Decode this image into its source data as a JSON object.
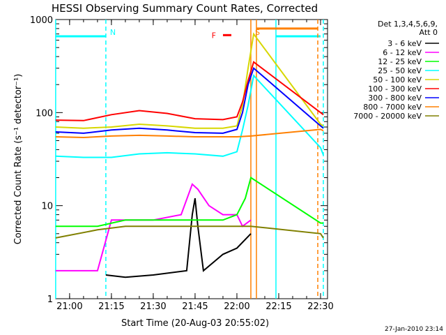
{
  "chart_data": {
    "type": "line",
    "title": "HESSI Observing Summary Count Rates, Corrected",
    "xlabel": "Start Time (20-Aug-03 20:55:02)",
    "ylabel": "Corrected Count Rate (s⁻¹ detector⁻¹)",
    "ylog": true,
    "xlim": [
      "20:55:02",
      "22:32:30"
    ],
    "ylim": [
      1,
      1000
    ],
    "x_ticks": [
      "21:00",
      "21:15",
      "21:30",
      "21:45",
      "22:00",
      "22:15",
      "22:30"
    ],
    "y_ticks": [
      "1",
      "10",
      "100",
      "1000"
    ],
    "legend": {
      "position": "right",
      "header": [
        "Det 1,3,4,5,6,9,",
        "Att 0"
      ]
    },
    "footer_text": "27-Jan-2010 23:14",
    "series": [
      {
        "name": "3 - 6 keV",
        "color": "#000000",
        "x": [
          "21:13",
          "21:20",
          "21:30",
          "21:42",
          "21:44",
          "21:45",
          "21:46",
          "21:48",
          "21:55",
          "22:00",
          "22:05"
        ],
        "y": [
          1.8,
          1.7,
          1.8,
          2.0,
          8.0,
          12.0,
          6.0,
          2.0,
          3.0,
          3.5,
          5.0
        ]
      },
      {
        "name": "6 - 12 keV",
        "color": "#ff00ff",
        "x": [
          "20:55",
          "21:10",
          "21:15",
          "21:30",
          "21:40",
          "21:44",
          "21:46",
          "21:50",
          "21:55",
          "22:00",
          "22:02",
          "22:05"
        ],
        "y": [
          2.0,
          2.0,
          7.0,
          7.0,
          8.0,
          17.0,
          15.0,
          10.0,
          8.0,
          8.0,
          6.0,
          7.0
        ]
      },
      {
        "name": "12 - 25 keV",
        "color": "#00ff00",
        "x": [
          "20:55",
          "21:10",
          "21:20",
          "21:30",
          "21:45",
          "21:55",
          "22:00",
          "22:03",
          "22:05",
          "22:30",
          "22:31"
        ],
        "y": [
          6.0,
          6.0,
          7.0,
          7.0,
          7.0,
          7.0,
          8.0,
          12.0,
          20.0,
          6.5,
          6.5
        ]
      },
      {
        "name": "25 - 50 keV",
        "color": "#00ffff",
        "x": [
          "20:55",
          "21:05",
          "21:15",
          "21:25",
          "21:35",
          "21:45",
          "21:55",
          "22:00",
          "22:02",
          "22:04",
          "22:06",
          "22:30",
          "22:31"
        ],
        "y": [
          34,
          33,
          33,
          36,
          37,
          36,
          34,
          38,
          65,
          120,
          250,
          42,
          35
        ]
      },
      {
        "name": "50 - 100 keV",
        "color": "#d7d700",
        "x": [
          "20:55",
          "21:05",
          "21:15",
          "21:25",
          "21:35",
          "21:45",
          "21:55",
          "22:00",
          "22:02",
          "22:04",
          "22:06",
          "22:30",
          "22:31"
        ],
        "y": [
          70,
          68,
          70,
          75,
          72,
          68,
          68,
          72,
          120,
          300,
          700,
          75,
          72
        ]
      },
      {
        "name": "100 - 300 keV",
        "color": "#ff0000",
        "x": [
          "20:55",
          "21:05",
          "21:15",
          "21:25",
          "21:35",
          "21:45",
          "21:55",
          "22:00",
          "22:02",
          "22:04",
          "22:06",
          "22:30",
          "22:31"
        ],
        "y": [
          83,
          82,
          95,
          105,
          98,
          86,
          84,
          90,
          130,
          220,
          350,
          100,
          95
        ]
      },
      {
        "name": "300 - 800 keV",
        "color": "#0000ff",
        "x": [
          "20:55",
          "21:05",
          "21:15",
          "21:25",
          "21:35",
          "21:45",
          "21:55",
          "22:00",
          "22:02",
          "22:04",
          "22:06",
          "22:30",
          "22:31"
        ],
        "y": [
          62,
          60,
          65,
          68,
          65,
          61,
          60,
          66,
          100,
          200,
          300,
          72,
          68
        ]
      },
      {
        "name": "800 - 7000 keV",
        "color": "#ff8000",
        "x": [
          "20:55",
          "21:05",
          "21:15",
          "21:25",
          "21:35",
          "21:45",
          "21:55",
          "22:00",
          "22:05",
          "22:30",
          "22:31"
        ],
        "y": [
          55,
          54,
          56,
          57,
          56,
          55,
          55,
          55,
          56,
          66,
          64
        ]
      },
      {
        "name": "7000 - 20000 keV",
        "color": "#808000",
        "x": [
          "20:55",
          "21:10",
          "21:20",
          "21:30",
          "21:45",
          "21:55",
          "22:00",
          "22:05",
          "22:30",
          "22:31"
        ],
        "y": [
          4.5,
          5.5,
          6.0,
          6.0,
          6.0,
          6.0,
          6.0,
          6.0,
          5.0,
          4.5
        ]
      }
    ],
    "annotations": [
      {
        "label": "N",
        "color": "#00ffff",
        "x": "21:13",
        "line": "dashed"
      },
      {
        "label": "S",
        "color": "#ff8000",
        "x": "22:05",
        "line": "solid"
      },
      {
        "label": "F",
        "color": "#ff0000",
        "x_range": [
          "21:55",
          "21:58"
        ],
        "y": 680
      }
    ],
    "markers": [
      {
        "color": "#00ffff",
        "x_range": [
          "20:55",
          "21:13"
        ],
        "y": 660,
        "style": "bar"
      },
      {
        "color": "#00ffff",
        "x": "20:55",
        "style": "solid-vline"
      },
      {
        "color": "#00ffff",
        "x": "22:14",
        "style": "solid-vline"
      },
      {
        "color": "#00ffff",
        "x_range": [
          "22:14",
          "22:30"
        ],
        "y": 660,
        "style": "bar"
      },
      {
        "color": "#00ffff",
        "x": "22:31",
        "style": "dashed-vline"
      },
      {
        "color": "#ff8000",
        "x": "22:07",
        "style": "solid-vline"
      },
      {
        "color": "#ff8000",
        "x_range": [
          "22:07",
          "22:29"
        ],
        "y": 800,
        "style": "bar"
      },
      {
        "color": "#ff8000",
        "x": "22:29",
        "style": "dashed-vline"
      }
    ]
  }
}
